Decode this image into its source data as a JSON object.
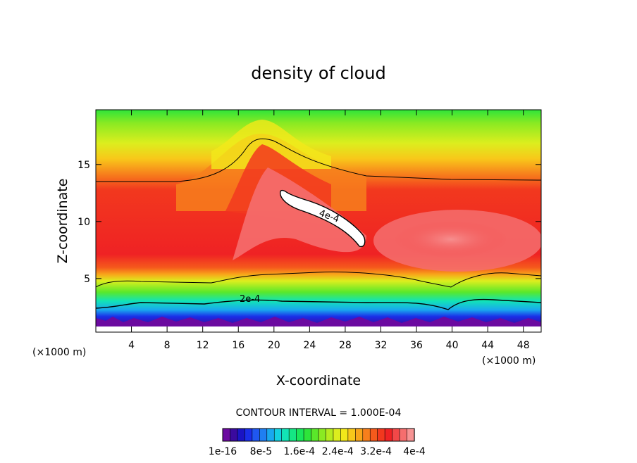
{
  "chart_data": {
    "type": "heatmap",
    "subtype": "filled-contour",
    "title": "density of cloud",
    "xlabel": "X-coordinate",
    "ylabel": "Z-coordinate",
    "x_unit_note": "(×1000 m)",
    "y_unit_note": "(×1000 m)",
    "xlim": [
      0,
      50
    ],
    "ylim": [
      0.3,
      19.8
    ],
    "xticks": [
      4,
      8,
      12,
      16,
      20,
      24,
      28,
      32,
      36,
      40,
      44,
      48
    ],
    "yticks": [
      5,
      10,
      15
    ],
    "contour_interval_text": "CONTOUR INTERVAL = 1.000E-04",
    "contour_labels": [
      {
        "text": "4e-4",
        "value": 0.0004,
        "x": 24.0,
        "z": 10.5
      },
      {
        "text": "2e-4",
        "value": 0.0002,
        "x": 17.2,
        "z": 3.0
      }
    ],
    "colorbar": {
      "min": 1e-16,
      "max": 0.0004,
      "tick_labels": [
        "1e-16",
        "8e-5",
        "1.6e-4",
        "2.4e-4",
        "3.2e-4",
        "4e-4"
      ],
      "colors": [
        "#6b0aa0",
        "#3a0a9e",
        "#1a14c4",
        "#1a2ee8",
        "#1f57f0",
        "#1f7ff2",
        "#19a8ef",
        "#13d0e0",
        "#12e4b6",
        "#15e684",
        "#1ae65a",
        "#2ee43a",
        "#5ae82a",
        "#8aea22",
        "#b5ec1f",
        "#dcee1e",
        "#f2e81a",
        "#f8c81a",
        "#f8a51a",
        "#f77f1c",
        "#f55a1c",
        "#f2381e",
        "#ef2224",
        "#f24848",
        "#f56e6e",
        "#f79494"
      ]
    },
    "max_value_region": "≥ 4e-4 near X 20–30, Z 8–12.5"
  }
}
